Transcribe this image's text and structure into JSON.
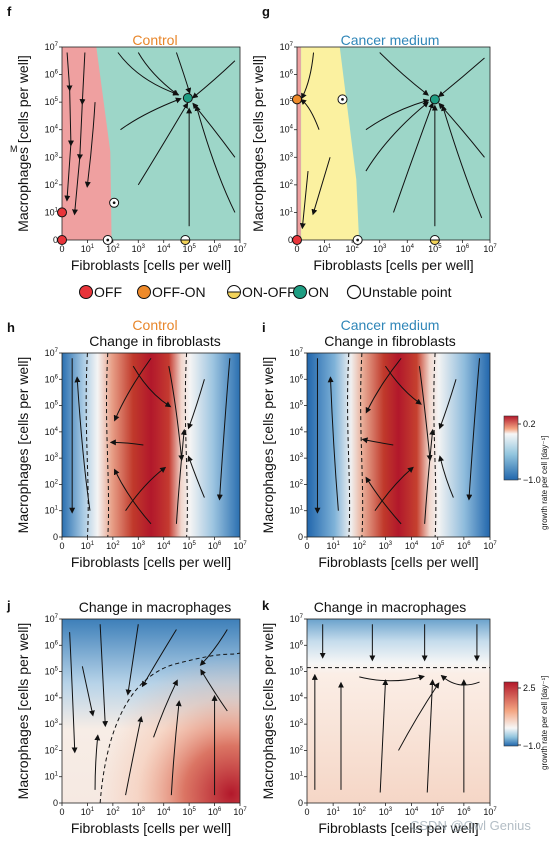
{
  "colors": {
    "off": "#e8343a",
    "off_on": "#ee8a2a",
    "on_off": "#f3d45a",
    "on": "#1f9e83",
    "region_red": "#efa0a0",
    "region_green": "#9dd6c8",
    "region_yellow": "#fbf1a0",
    "title_orange": "#e8862a",
    "title_blue": "#2f86b8",
    "heat_pos": "#b2182b",
    "heat_neg": "#2166ac"
  },
  "axis": {
    "x_label": "Fibroblasts [cells per well]",
    "y_label": "Macrophages [cells per well]",
    "ticks": [
      "0",
      "10",
      "10",
      "10",
      "10",
      "10",
      "10",
      "10"
    ],
    "exponents": [
      "",
      "1",
      "2",
      "3",
      "4",
      "5",
      "6",
      "7"
    ]
  },
  "legend": {
    "items": [
      {
        "key": "off",
        "label": "OFF"
      },
      {
        "key": "off_on",
        "label": "OFF-ON"
      },
      {
        "key": "on_off",
        "label": "ON-OFF"
      },
      {
        "key": "on",
        "label": "ON"
      },
      {
        "key": "unstable",
        "label": "Unstable point"
      }
    ]
  },
  "colorbars": [
    {
      "max": "0.2",
      "min": "−1.0",
      "label": "growth rate per cell [day⁻¹]"
    },
    {
      "max": "2.5",
      "min": "−1.0",
      "label": "growth rate per cell [day⁻¹]"
    }
  ],
  "watermark": "CSDN @Owl Genius",
  "stray_mark": "M",
  "chart_data": [
    {
      "panel": "f",
      "type": "phase-portrait",
      "title": "Control",
      "xlim": [
        0,
        7
      ],
      "ylim": [
        0,
        7
      ],
      "x_scale": "log (0 then 10^1..10^7)",
      "y_scale": "log (0 then 10^1..10^7)",
      "regions": [
        {
          "basin": "OFF",
          "color": "red"
        },
        {
          "basin": "ON",
          "color": "green"
        }
      ],
      "points": [
        {
          "state": "OFF",
          "x": 0,
          "y": 0
        },
        {
          "state": "OFF",
          "x": 0,
          "y": 1.0
        },
        {
          "state": "unstable",
          "x": 1.8,
          "y": 0
        },
        {
          "state": "unstable",
          "x": 2.05,
          "y": 1.35
        },
        {
          "state": "ON-OFF",
          "x": 4.85,
          "y": 0
        },
        {
          "state": "ON",
          "x": 4.95,
          "y": 5.15
        }
      ]
    },
    {
      "panel": "g",
      "type": "phase-portrait",
      "title": "Cancer medium",
      "xlim": [
        0,
        7
      ],
      "ylim": [
        0,
        7
      ],
      "regions": [
        {
          "basin": "OFF",
          "color": "red"
        },
        {
          "basin": "OFF-ON",
          "color": "yellow"
        },
        {
          "basin": "ON",
          "color": "green"
        }
      ],
      "points": [
        {
          "state": "OFF",
          "x": 0,
          "y": 0
        },
        {
          "state": "OFF-ON",
          "x": 0,
          "y": 5.1
        },
        {
          "state": "unstable",
          "x": 1.65,
          "y": 5.1
        },
        {
          "state": "unstable",
          "x": 2.2,
          "y": 0
        },
        {
          "state": "ON-OFF",
          "x": 5.0,
          "y": 0
        },
        {
          "state": "ON",
          "x": 5.0,
          "y": 5.1
        }
      ]
    },
    {
      "panel": "h",
      "type": "heatmap+streamplot",
      "title": "Control",
      "subtitle": "Change in fibroblasts",
      "xlim": [
        0,
        7
      ],
      "ylim": [
        0,
        7
      ],
      "colorbar_range": [
        -1.0,
        0.2
      ],
      "nullclines_x": [
        1.0,
        1.8,
        4.9
      ]
    },
    {
      "panel": "i",
      "type": "heatmap+streamplot",
      "title": "Cancer medium",
      "subtitle": "Change in fibroblasts",
      "xlim": [
        0,
        7
      ],
      "ylim": [
        0,
        7
      ],
      "colorbar_range": [
        -1.0,
        0.2
      ],
      "nullclines_x": [
        1.6,
        2.1,
        4.9
      ]
    },
    {
      "panel": "j",
      "type": "heatmap+streamplot",
      "title": "",
      "subtitle": "Change in macrophages",
      "xlim": [
        0,
        7
      ],
      "ylim": [
        0,
        7
      ]
    },
    {
      "panel": "k",
      "type": "heatmap+streamplot",
      "title": "",
      "subtitle": "Change in macrophages",
      "xlim": [
        0,
        7
      ],
      "ylim": [
        0,
        7
      ],
      "colorbar_range": [
        -1.0,
        2.5
      ],
      "nullcline_y": 5.15
    }
  ]
}
